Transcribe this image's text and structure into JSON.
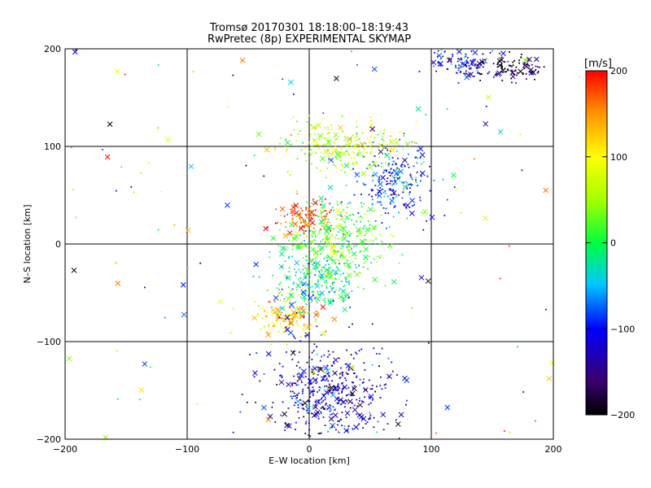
{
  "chart_data": {
    "type": "scatter",
    "title": "Tromsø 20170301 18:18:00–18:19:43",
    "subtitle": "RwPretec (8p) EXPERIMENTAL SKYMAP",
    "xlabel": "E–W location [km]",
    "ylabel": "N–S location [km]",
    "xlim": [
      -200,
      200
    ],
    "ylim": [
      -200,
      200
    ],
    "xticks": [
      -200,
      -100,
      0,
      100,
      200
    ],
    "yticks": [
      -200,
      -100,
      0,
      100,
      200
    ],
    "grid_lines": [
      -100,
      0,
      100
    ],
    "grid": true,
    "colorbar": {
      "label": "[m/s]",
      "min": -200,
      "max": 200,
      "ticks": [
        200,
        100,
        0,
        -100,
        -200
      ]
    },
    "markers": [
      "dot",
      "x"
    ],
    "clusters": [
      {
        "region": "upper-right",
        "x": 70,
        "y": 65,
        "spread": [
          15,
          18
        ],
        "velocity": -95
      },
      {
        "region": "far-upper-right",
        "x": 165,
        "y": 180,
        "spread": [
          15,
          6
        ],
        "velocity": -190
      },
      {
        "region": "top-right",
        "x": 125,
        "y": 185,
        "spread": [
          14,
          7
        ],
        "velocity": -110
      },
      {
        "region": "centre",
        "x": 22,
        "y": 5,
        "spread": [
          20,
          22
        ],
        "velocity": 20
      },
      {
        "region": "left-of-centre",
        "x": -5,
        "y": 28,
        "spread": [
          12,
          8
        ],
        "velocity": 175
      },
      {
        "region": "north-centre",
        "x": 25,
        "y": 100,
        "spread": [
          25,
          12
        ],
        "velocity": 60
      },
      {
        "region": "lower-left",
        "x": -20,
        "y": -75,
        "spread": [
          14,
          10
        ],
        "velocity": 120
      },
      {
        "region": "south",
        "x": 5,
        "y": -40,
        "spread": [
          18,
          15
        ],
        "velocity": -20
      },
      {
        "region": "far-south",
        "x": 15,
        "y": -150,
        "spread": [
          25,
          25
        ],
        "velocity": -130
      }
    ]
  }
}
